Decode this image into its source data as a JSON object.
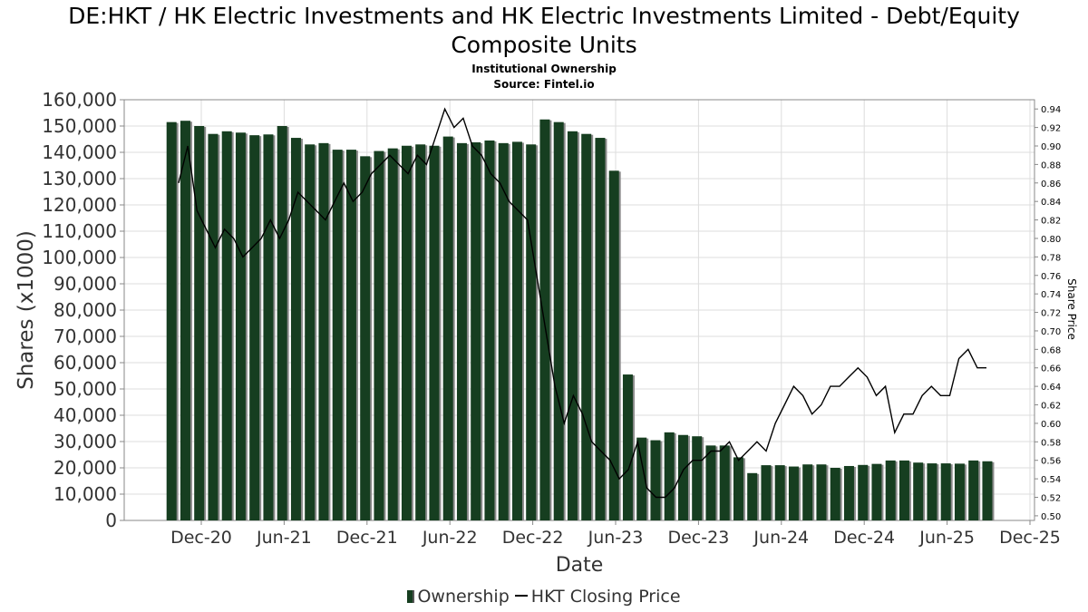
{
  "title_line1": "DE:HKT / HK Electric Investments and HK Electric Investments Limited - Debt/Equity",
  "title_line2": "Composite Units",
  "subtitle1": "Institutional Ownership",
  "subtitle2": "Source: Fintel.io",
  "legend": {
    "ownership": "Ownership",
    "price": "HKT Closing Price"
  },
  "colors": {
    "bar": "#163e20",
    "bar_shadow": "#8a8a8a",
    "line": "#000000",
    "grid": "#dddddd"
  },
  "chart_data": {
    "type": "bar",
    "xlabel": "Date",
    "ylabel": "Shares (x1000)",
    "y2label": "Share Price",
    "ylim": [
      0,
      160000
    ],
    "y2lim": [
      0.495,
      0.95
    ],
    "grid": true,
    "legend_position": "bottom",
    "x_ticks": [
      "Dec-20",
      "Jun-21",
      "Dec-21",
      "Jun-22",
      "Dec-22",
      "Jun-23",
      "Dec-23",
      "Jun-24",
      "Dec-24",
      "Jun-25",
      "Dec-25"
    ],
    "y_ticks": [
      "0",
      "10,000",
      "20,000",
      "30,000",
      "40,000",
      "50,000",
      "60,000",
      "70,000",
      "80,000",
      "90,000",
      "100,000",
      "110,000",
      "120,000",
      "130,000",
      "140,000",
      "150,000",
      "160,000"
    ],
    "y2_ticks": [
      "0.50",
      "0.52",
      "0.54",
      "0.56",
      "0.58",
      "0.60",
      "0.62",
      "0.64",
      "0.66",
      "0.68",
      "0.70",
      "0.72",
      "0.74",
      "0.76",
      "0.78",
      "0.80",
      "0.82",
      "0.84",
      "0.86",
      "0.88",
      "0.90",
      "0.92",
      "0.94"
    ],
    "series": [
      {
        "name": "Ownership",
        "type": "bar",
        "values": [
          151500,
          152000,
          150000,
          147000,
          148000,
          147500,
          146500,
          146800,
          150000,
          145500,
          143000,
          143500,
          141000,
          141000,
          138500,
          140500,
          141500,
          142500,
          143000,
          142500,
          146000,
          143500,
          143800,
          144500,
          143500,
          144000,
          143000,
          152500,
          151500,
          148000,
          147000,
          145500,
          133000,
          55500,
          31500,
          30500,
          33500,
          32500,
          32000,
          28500,
          28500,
          24000,
          18000,
          21000,
          21000,
          20500,
          21300,
          21300,
          20000,
          20700,
          21100,
          21500,
          22800,
          22800,
          22000,
          21700,
          21700,
          21600,
          22800,
          22500
        ]
      },
      {
        "name": "HKT Closing Price",
        "type": "line",
        "values": [
          0.86,
          0.9,
          0.83,
          0.81,
          0.79,
          0.81,
          0.8,
          0.78,
          0.79,
          0.8,
          0.82,
          0.8,
          0.82,
          0.85,
          0.84,
          0.83,
          0.82,
          0.84,
          0.86,
          0.84,
          0.85,
          0.87,
          0.88,
          0.89,
          0.88,
          0.87,
          0.89,
          0.88,
          0.91,
          0.94,
          0.92,
          0.93,
          0.9,
          0.89,
          0.87,
          0.86,
          0.84,
          0.83,
          0.82,
          0.76,
          0.7,
          0.64,
          0.6,
          0.63,
          0.61,
          0.58,
          0.57,
          0.56,
          0.54,
          0.55,
          0.58,
          0.53,
          0.52,
          0.52,
          0.53,
          0.55,
          0.56,
          0.56,
          0.57,
          0.57,
          0.58,
          0.56,
          0.57,
          0.58,
          0.57,
          0.6,
          0.62,
          0.64,
          0.63,
          0.61,
          0.62,
          0.64,
          0.64,
          0.65,
          0.66,
          0.65,
          0.63,
          0.64,
          0.59,
          0.61,
          0.61,
          0.63,
          0.64,
          0.63,
          0.63,
          0.67,
          0.68,
          0.66,
          0.66
        ]
      }
    ]
  }
}
